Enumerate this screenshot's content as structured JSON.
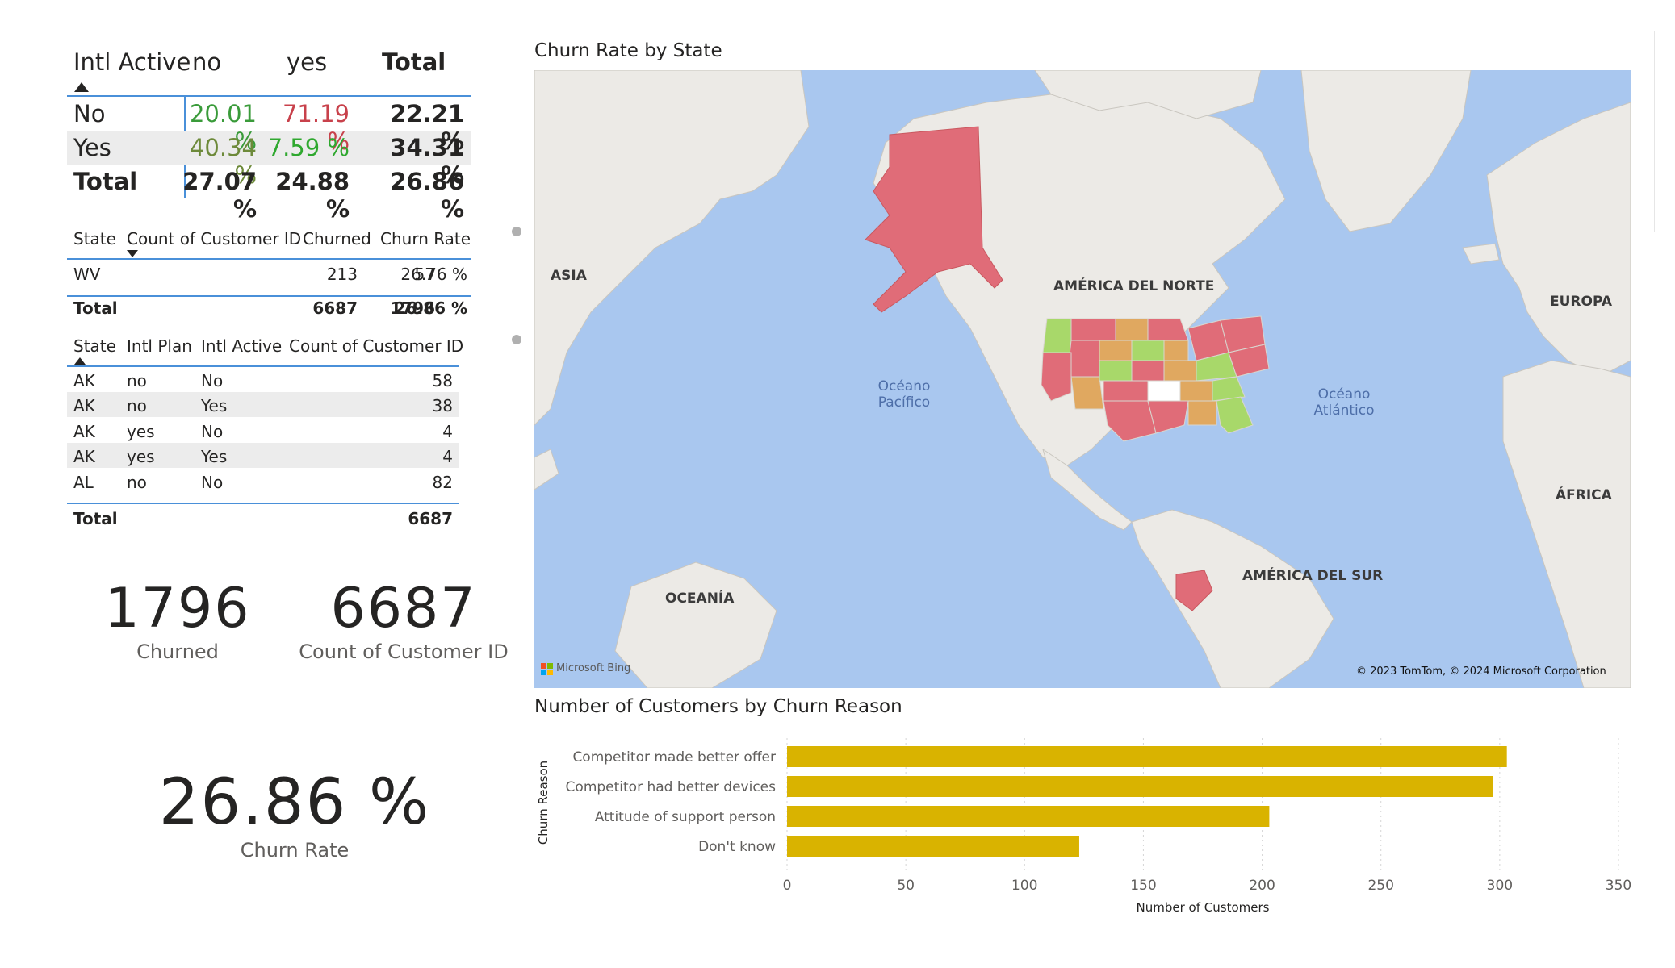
{
  "matrix_intl": {
    "row_header": "Intl Active",
    "columns": [
      "no",
      "yes",
      "Total"
    ],
    "rows": [
      {
        "label": "No",
        "values": [
          "20.01 %",
          "71.19 %",
          "22.21 %"
        ],
        "colors": [
          "#3a9b3a",
          "#c8414b",
          "#252423"
        ]
      },
      {
        "label": "Yes",
        "values": [
          "40.34 %",
          "7.59 %",
          "34.31 %"
        ],
        "colors": [
          "#6d8a3a",
          "#2fa82f",
          "#252423"
        ]
      },
      {
        "label": "Total",
        "values": [
          "27.07 %",
          "24.88 %",
          "26.86 %"
        ],
        "colors": [
          "#252423",
          "#252423",
          "#252423"
        ]
      }
    ]
  },
  "state_table": {
    "headers": [
      "State",
      "Count of Customer ID",
      "Churned",
      "Churn Rate"
    ],
    "rows": [
      [
        "WV",
        "213",
        "57",
        "26.76 %"
      ]
    ],
    "total": [
      "Total",
      "6687",
      "1796",
      "26.86 %"
    ]
  },
  "detail_table": {
    "headers": [
      "State",
      "Intl Plan",
      "Intl Active",
      "Count of Customer ID"
    ],
    "rows": [
      [
        "AK",
        "no",
        "No",
        "58"
      ],
      [
        "AK",
        "no",
        "Yes",
        "38"
      ],
      [
        "AK",
        "yes",
        "No",
        "4"
      ],
      [
        "AK",
        "yes",
        "Yes",
        "4"
      ],
      [
        "AL",
        "no",
        "No",
        "82"
      ]
    ],
    "total": [
      "Total",
      "6687"
    ]
  },
  "cards": {
    "churned": {
      "value": "1796",
      "label": "Churned"
    },
    "count": {
      "value": "6687",
      "label": "Count of Customer ID"
    },
    "rate": {
      "value": "26.86 %",
      "label": "Churn Rate"
    }
  },
  "map": {
    "title": "Churn Rate by State",
    "labels": {
      "asia": "ASIA",
      "north_america": "AMÉRICA DEL NORTE",
      "europe": "EUROPA",
      "pacific_1": "Océano",
      "pacific_2": "Pacífico",
      "atlantic_1": "Océano",
      "atlantic_2": "Atlántico",
      "africa": "ÁFRICA",
      "south_america": "AMÉRICA DEL SUR",
      "oceania": "OCEANÍA",
      "bing": "Microsoft Bing",
      "copyright": "© 2023 TomTom, © 2024 Microsoft Corporation"
    },
    "colors": {
      "ocean": "#a9c7ef",
      "land": "#eceae6",
      "high": "#e06c78",
      "mid": "#e0a860",
      "low": "#a8d86a"
    }
  },
  "chart_data": {
    "type": "bar",
    "orientation": "horizontal",
    "title": "Number of Customers by Churn Reason",
    "xlabel": "Number of Customers",
    "ylabel": "Churn Reason",
    "categories": [
      "Competitor made better offer",
      "Competitor had better devices",
      "Attitude of support person",
      "Don't know"
    ],
    "values": [
      303,
      297,
      203,
      123
    ],
    "xlim": [
      0,
      350
    ],
    "xticks": [
      0,
      50,
      100,
      150,
      200,
      250,
      300,
      350
    ],
    "color": "#d9b300",
    "grid": true
  }
}
